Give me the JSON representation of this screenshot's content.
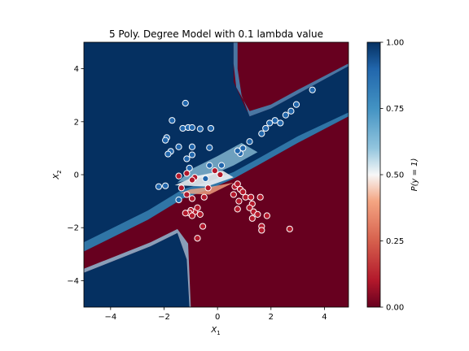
{
  "chart_data": {
    "type": "scatter",
    "title": "5 Poly. Degree Model with 0.1 lambda value",
    "xlabel": "X",
    "xlabel_sub": "1",
    "ylabel": "X",
    "ylabel_sub": "2",
    "xlim": [
      -5,
      4.9
    ],
    "ylim": [
      -5,
      5
    ],
    "xticks": [
      -4,
      -2,
      0,
      2,
      4
    ],
    "yticks": [
      -4,
      -2,
      0,
      2,
      4
    ],
    "colorbar": {
      "label": "P(y = 1)",
      "range": [
        0,
        1
      ],
      "ticks": [
        "0.00",
        "0.25",
        "0.50",
        "0.75",
        "1.00"
      ],
      "low_color": "#67001f",
      "mid_color": "#f7f7f7",
      "high_color": "#053061"
    },
    "background": "filled contour of predicted probability P(y = 1)",
    "series": [
      {
        "class": 1,
        "color": "#2166ac",
        "points": [
          [
            -1.2,
            2.7
          ],
          [
            -1.7,
            2.05
          ],
          [
            -1.3,
            1.75
          ],
          [
            -1.1,
            1.78
          ],
          [
            -0.95,
            1.78
          ],
          [
            -0.65,
            1.73
          ],
          [
            -0.25,
            1.75
          ],
          [
            -1.9,
            1.4
          ],
          [
            -1.95,
            1.3
          ],
          [
            -1.45,
            1.05
          ],
          [
            -0.95,
            1.05
          ],
          [
            -0.3,
            1.02
          ],
          [
            -1.75,
            0.88
          ],
          [
            -1.85,
            0.78
          ],
          [
            -0.95,
            0.75
          ],
          [
            -1.15,
            0.6
          ],
          [
            -0.3,
            0.35
          ],
          [
            -2.2,
            -0.45
          ],
          [
            -1.95,
            -0.42
          ],
          [
            0.85,
            0.8
          ],
          [
            0.75,
            0.9
          ],
          [
            0.95,
            1.0
          ],
          [
            1.2,
            1.25
          ],
          [
            1.65,
            1.55
          ],
          [
            1.8,
            1.75
          ],
          [
            1.95,
            1.95
          ],
          [
            2.15,
            2.05
          ],
          [
            2.35,
            1.95
          ],
          [
            2.55,
            2.25
          ],
          [
            2.75,
            2.4
          ],
          [
            2.95,
            2.65
          ],
          [
            3.55,
            3.2
          ],
          [
            0.15,
            0.35
          ],
          [
            -0.45,
            -0.15
          ],
          [
            -1.45,
            -0.95
          ],
          [
            -1.05,
            0.25
          ]
        ]
      },
      {
        "class": 0,
        "color": "#b2182b",
        "points": [
          [
            -1.45,
            -0.05
          ],
          [
            -1.15,
            0.05
          ],
          [
            -0.85,
            -0.1
          ],
          [
            -0.95,
            -0.2
          ],
          [
            -1.35,
            -0.5
          ],
          [
            -1.15,
            -0.75
          ],
          [
            -0.95,
            -0.9
          ],
          [
            -0.85,
            -1.4
          ],
          [
            -1.0,
            -1.35
          ],
          [
            -1.05,
            -1.45
          ],
          [
            -0.95,
            -1.55
          ],
          [
            -0.75,
            -1.25
          ],
          [
            -0.65,
            -1.5
          ],
          [
            -0.55,
            -1.95
          ],
          [
            -0.75,
            -2.4
          ],
          [
            -0.5,
            -0.85
          ],
          [
            -0.35,
            -0.5
          ],
          [
            0.1,
            0.0
          ],
          [
            -0.1,
            0.15
          ],
          [
            0.65,
            -0.45
          ],
          [
            0.75,
            -0.35
          ],
          [
            0.85,
            -0.55
          ],
          [
            0.95,
            -0.65
          ],
          [
            0.6,
            -0.75
          ],
          [
            1.05,
            -0.85
          ],
          [
            1.25,
            -0.85
          ],
          [
            0.8,
            -1.0
          ],
          [
            1.3,
            -1.1
          ],
          [
            1.2,
            -1.25
          ],
          [
            1.35,
            -1.4
          ],
          [
            0.75,
            -1.3
          ],
          [
            1.3,
            -1.65
          ],
          [
            1.5,
            -1.5
          ],
          [
            1.6,
            -0.85
          ],
          [
            1.65,
            -1.95
          ],
          [
            1.65,
            -2.1
          ],
          [
            1.85,
            -1.55
          ],
          [
            2.7,
            -2.05
          ],
          [
            -1.2,
            -1.45
          ]
        ]
      }
    ]
  }
}
